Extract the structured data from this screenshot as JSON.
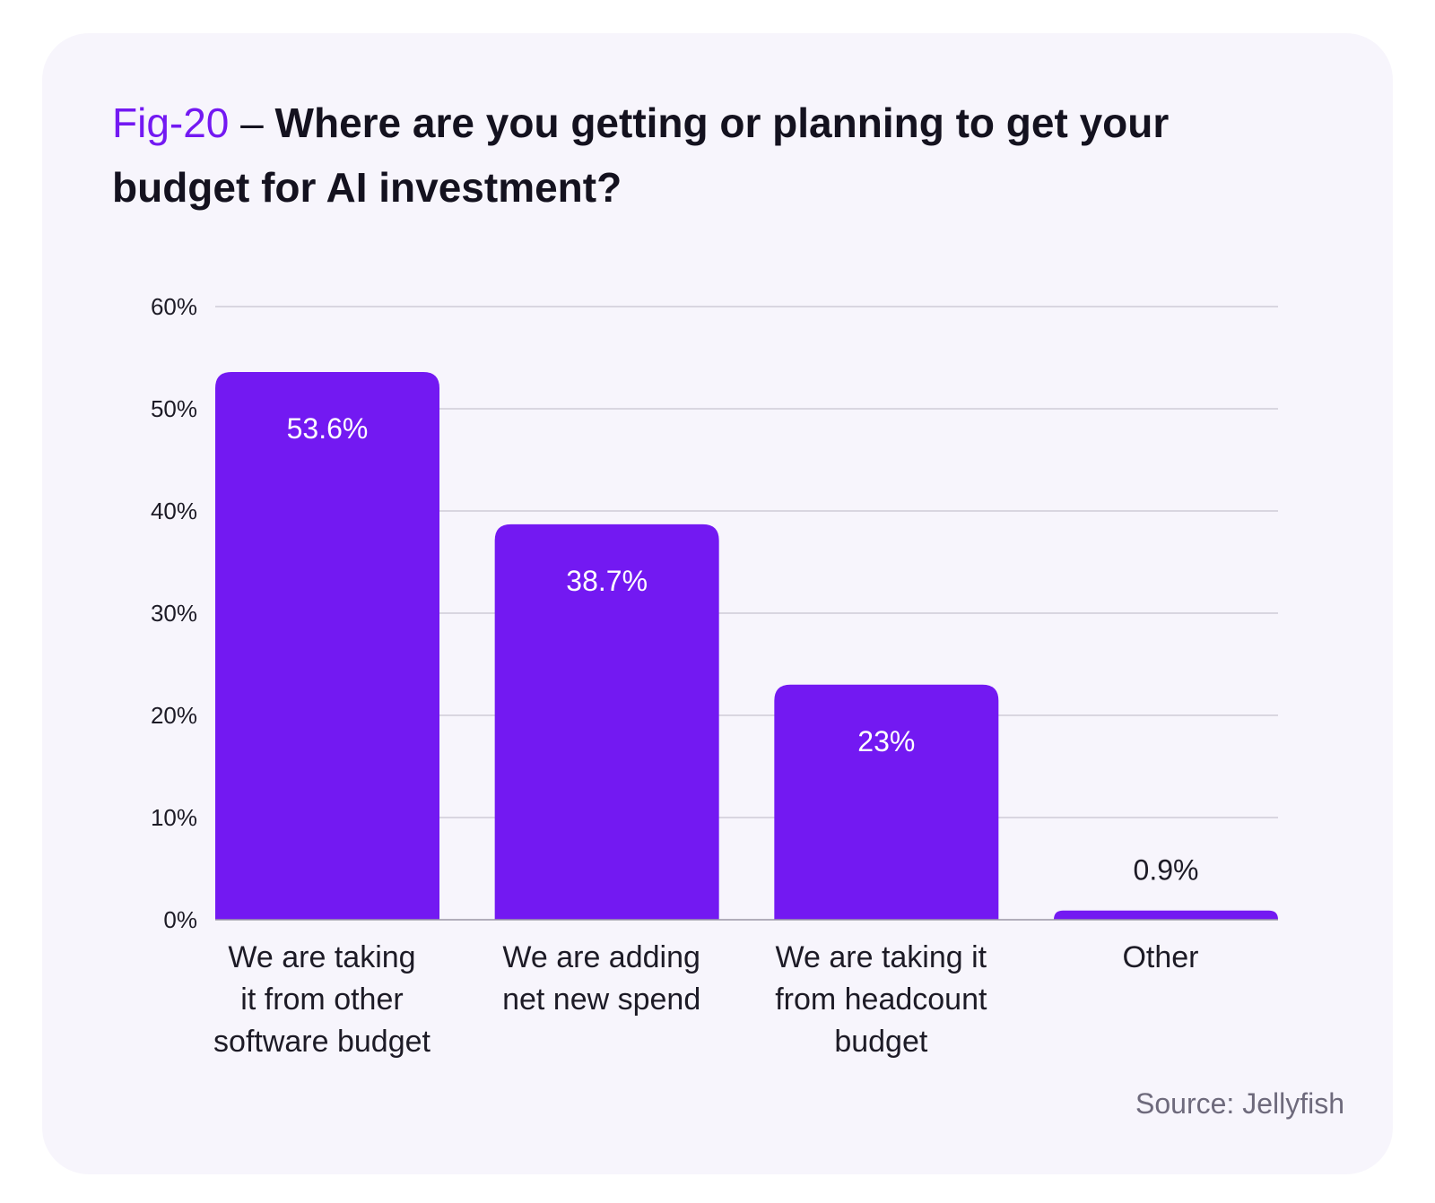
{
  "title": {
    "fig_label": "Fig-20",
    "separator": "–",
    "question": "Where are you getting or planning to get your budget for AI investment?"
  },
  "source": "Source: Jellyfish",
  "colors": {
    "bar": "#7319f2",
    "title_accent": "#7319f2",
    "gridline": "#cfccd6",
    "background": "#f7f5fc"
  },
  "chart_data": {
    "type": "bar",
    "categories": [
      [
        "We are taking",
        "it from other",
        "software budget"
      ],
      [
        "We are adding",
        "net new spend"
      ],
      [
        "We are taking it",
        "from headcount",
        "budget"
      ],
      [
        "Other"
      ]
    ],
    "values": [
      53.6,
      38.7,
      23,
      0.9
    ],
    "value_labels": [
      "53.6%",
      "38.7%",
      "23%",
      "0.9%"
    ],
    "ylim": [
      0,
      60
    ],
    "yticks": [
      0,
      10,
      20,
      30,
      40,
      50,
      60
    ],
    "ytick_labels": [
      "0%",
      "10%",
      "20%",
      "30%",
      "40%",
      "50%",
      "60%"
    ],
    "grid": true,
    "xlabel": "",
    "ylabel": ""
  }
}
